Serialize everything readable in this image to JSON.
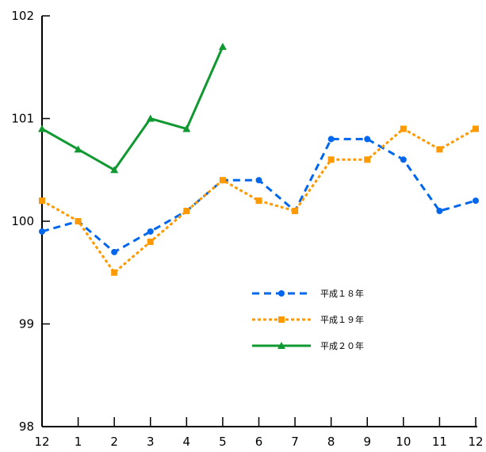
{
  "chart_data": {
    "type": "line",
    "title": "",
    "xlabel": "",
    "ylabel": "",
    "categories": [
      "12",
      "1",
      "2",
      "3",
      "4",
      "5",
      "6",
      "7",
      "8",
      "9",
      "10",
      "11",
      "12"
    ],
    "ylim": [
      98,
      102
    ],
    "yticks": [
      "98",
      "99",
      "100",
      "101",
      "102"
    ],
    "grid": false,
    "legend_position": "inside-lower-right",
    "series": [
      {
        "name": "平成１８年",
        "color": "#0066ee",
        "line_style": "dashed",
        "marker": "circle",
        "values": [
          99.9,
          100.0,
          99.7,
          99.9,
          100.1,
          100.4,
          100.4,
          100.1,
          100.8,
          100.8,
          100.6,
          100.1,
          100.2
        ]
      },
      {
        "name": "平成１９年",
        "color": "#ff9900",
        "line_style": "dotted",
        "marker": "square",
        "values": [
          100.2,
          100.0,
          99.5,
          99.8,
          100.1,
          100.4,
          100.2,
          100.1,
          100.6,
          100.6,
          100.9,
          100.7,
          100.9
        ]
      },
      {
        "name": "平成２０年",
        "color": "#109930",
        "line_style": "solid",
        "marker": "triangle",
        "values": [
          100.9,
          100.7,
          100.5,
          101.0,
          100.9,
          101.7,
          null,
          null,
          null,
          null,
          null,
          null,
          null
        ]
      }
    ]
  }
}
